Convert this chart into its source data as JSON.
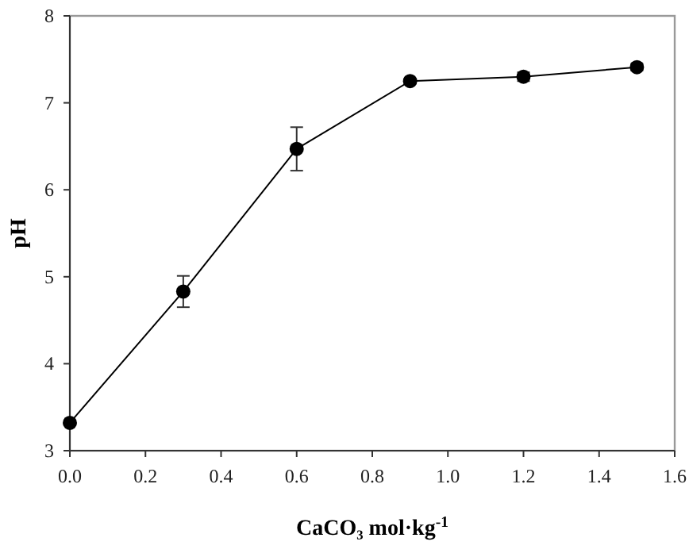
{
  "chart_data": {
    "type": "line",
    "xlabel": "CaCO₃ mol·kg$^{-1}$",
    "ylabel": "pH",
    "x": [
      0,
      0.3,
      0.6,
      0.9,
      1.2,
      1.5
    ],
    "series": [
      {
        "color": "#000000",
        "values": [
          3.32,
          4.83,
          6.47,
          7.25,
          7.3,
          7.41
        ],
        "errors": [
          null,
          0.18,
          0.25,
          null,
          0.05,
          0.04
        ]
      }
    ],
    "xlim": [
      0,
      1.6
    ],
    "ylim": [
      3,
      8
    ],
    "xticks": [
      {
        "value": 0,
        "label": "0.0"
      },
      {
        "value": 0.2,
        "label": "0.2"
      },
      {
        "value": 0.4,
        "label": "0.4"
      },
      {
        "value": 0.6,
        "label": "0.6"
      },
      {
        "value": 0.8,
        "label": "0.8"
      },
      {
        "value": 1,
        "label": "1.0"
      },
      {
        "value": 1.2,
        "label": "1.2"
      },
      {
        "value": 1.4,
        "label": "1.4"
      },
      {
        "value": 1.6,
        "label": "1.6"
      }
    ],
    "yticks": [
      3,
      4,
      5,
      6,
      7,
      8
    ],
    "grid": false,
    "marker": "circle",
    "line_style": "solid"
  }
}
